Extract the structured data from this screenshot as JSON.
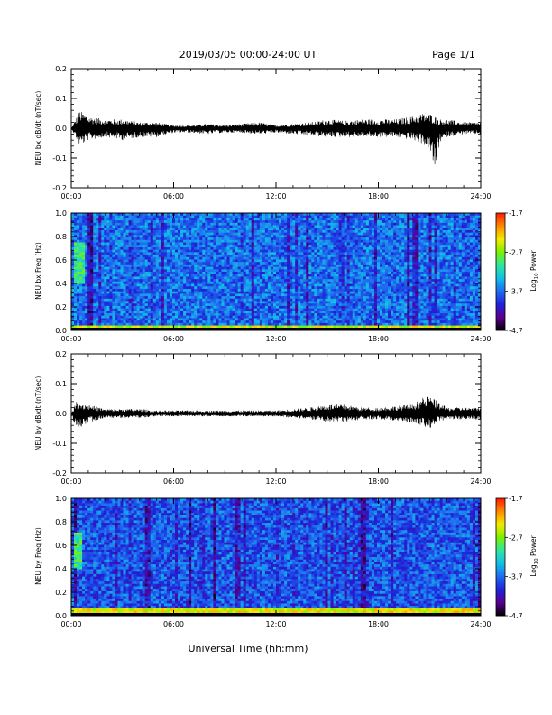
{
  "header": {
    "title": "2019/03/05  00:00-24:00 UT",
    "page_label": "Page 1/1"
  },
  "footer": {
    "xlabel": "Universal Time (hh:mm)"
  },
  "colors": {
    "trace": "#000000",
    "colormap": [
      "#000000",
      "#5a0090",
      "#1e22d8",
      "#1f6cf0",
      "#12bfe6",
      "#2fe6a0",
      "#7cf000",
      "#f5ea00",
      "#ff8a00",
      "#ff1a00"
    ]
  },
  "chart_data": [
    {
      "type": "line",
      "ylabel": "NEU bx dB/dt (nT/sec)",
      "x_ticks": [
        "00:00",
        "06:00",
        "12:00",
        "18:00",
        "24:00"
      ],
      "y_ticks": [
        "0.2",
        "0.1",
        "0.0",
        "-0.1",
        "-0.2"
      ],
      "xlim": [
        0,
        24
      ],
      "ylim": [
        -0.2,
        0.2
      ],
      "x_unit": "hours UT",
      "series": [
        {
          "x": [
            0,
            0.5,
            1,
            2,
            3,
            4,
            5,
            6,
            7,
            8,
            9,
            10,
            11,
            12,
            13,
            14,
            15,
            16,
            17,
            18,
            19,
            20,
            20.5,
            21,
            21.3,
            21.6,
            22,
            23,
            24
          ],
          "upper": [
            0.0,
            0.06,
            0.04,
            0.03,
            0.03,
            0.02,
            0.02,
            0.01,
            0.01,
            0.015,
            0.01,
            0.015,
            0.02,
            0.01,
            0.015,
            0.02,
            0.03,
            0.025,
            0.03,
            0.03,
            0.03,
            0.04,
            0.05,
            0.05,
            0.04,
            0.03,
            0.03,
            0.02,
            0.02
          ],
          "lower": [
            0.0,
            -0.06,
            -0.04,
            -0.03,
            -0.04,
            -0.03,
            -0.03,
            -0.015,
            -0.015,
            -0.02,
            -0.015,
            -0.015,
            -0.02,
            -0.015,
            -0.02,
            -0.025,
            -0.03,
            -0.03,
            -0.03,
            -0.03,
            -0.03,
            -0.04,
            -0.05,
            -0.07,
            -0.15,
            -0.05,
            -0.03,
            -0.02,
            -0.02
          ]
        }
      ]
    },
    {
      "type": "heatmap",
      "ylabel": "NEU bx Freq (Hz)",
      "x_ticks": [
        "00:00",
        "06:00",
        "12:00",
        "18:00",
        "24:00"
      ],
      "y_ticks": [
        "1.0",
        "0.8",
        "0.6",
        "0.4",
        "0.2",
        "0.0"
      ],
      "xlim": [
        0,
        24
      ],
      "ylim": [
        0,
        1.0
      ],
      "colorbar": {
        "label": "Log10 Power",
        "ticks": [
          "-1.7",
          "-2.7",
          "-3.7",
          "-4.7"
        ],
        "range": [
          -4.7,
          -1.7
        ]
      },
      "bands": [
        {
          "description": "low-frequency enhancement",
          "freq_range": [
            0.0,
            0.05
          ],
          "level": -2.5
        },
        {
          "description": "patch",
          "time_range": [
            0.2,
            0.8
          ],
          "freq_range": [
            0.4,
            0.75
          ],
          "level": -3.0
        }
      ],
      "background_level": -3.7
    },
    {
      "type": "line",
      "ylabel": "NEU by dB/dt (nT/sec)",
      "x_ticks": [
        "00:00",
        "06:00",
        "12:00",
        "18:00",
        "24:00"
      ],
      "y_ticks": [
        "0.2",
        "0.1",
        "0.0",
        "-0.1",
        "-0.2"
      ],
      "xlim": [
        0,
        24
      ],
      "ylim": [
        -0.2,
        0.2
      ],
      "x_unit": "hours UT",
      "series": [
        {
          "x": [
            0,
            0.3,
            1,
            2,
            3,
            4,
            5,
            6,
            7,
            8,
            9,
            10,
            11,
            12,
            13,
            14,
            15,
            16,
            17,
            18,
            19,
            20,
            20.5,
            21,
            21.5,
            22,
            23,
            24
          ],
          "upper": [
            0.0,
            0.04,
            0.03,
            0.015,
            0.015,
            0.015,
            0.01,
            0.01,
            0.01,
            0.01,
            0.01,
            0.01,
            0.01,
            0.01,
            0.015,
            0.02,
            0.03,
            0.03,
            0.02,
            0.02,
            0.025,
            0.03,
            0.05,
            0.06,
            0.04,
            0.02,
            0.02,
            0.02
          ],
          "lower": [
            0.0,
            -0.06,
            -0.03,
            -0.015,
            -0.015,
            -0.015,
            -0.01,
            -0.01,
            -0.01,
            -0.01,
            -0.01,
            -0.01,
            -0.01,
            -0.01,
            -0.015,
            -0.02,
            -0.03,
            -0.03,
            -0.02,
            -0.02,
            -0.025,
            -0.03,
            -0.04,
            -0.05,
            -0.03,
            -0.02,
            -0.02,
            -0.02
          ]
        }
      ]
    },
    {
      "type": "heatmap",
      "ylabel": "NEU by Freq (Hz)",
      "x_ticks": [
        "00:00",
        "06:00",
        "12:00",
        "18:00",
        "24:00"
      ],
      "y_ticks": [
        "1.0",
        "0.8",
        "0.6",
        "0.4",
        "0.2",
        "0.0"
      ],
      "xlim": [
        0,
        24
      ],
      "ylim": [
        0,
        1.0
      ],
      "colorbar": {
        "label": "Log10 Power",
        "ticks": [
          "-1.7",
          "-2.7",
          "-3.7",
          "-4.7"
        ],
        "range": [
          -4.7,
          -1.7
        ]
      },
      "bands": [
        {
          "description": "low-frequency enhancement",
          "freq_range": [
            0.0,
            0.06
          ],
          "level": -2.4
        },
        {
          "description": "patch",
          "time_range": [
            0.1,
            0.6
          ],
          "freq_range": [
            0.4,
            0.7
          ],
          "level": -3.0
        }
      ],
      "background_level": -3.8
    }
  ]
}
